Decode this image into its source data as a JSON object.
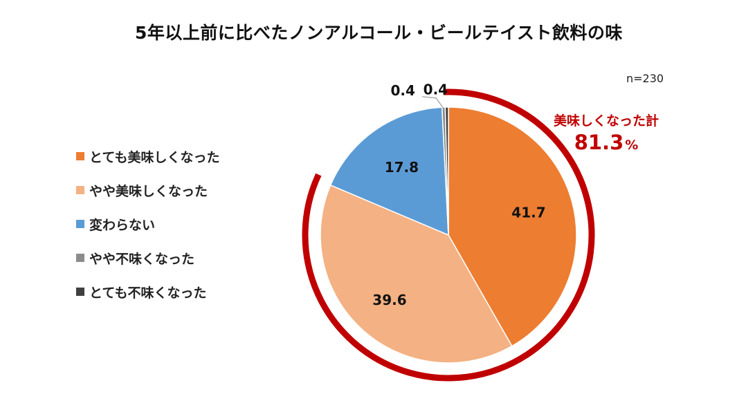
{
  "chart_data": {
    "type": "pie",
    "title": "5年以上前に比べたノンアルコール・ビールテイスト飲料の味",
    "sample": "n=230",
    "categories": [
      "とても美味しくなった",
      "やや美味しくなった",
      "変わらない",
      "やや不味くなった",
      "とても不味くなった"
    ],
    "values": [
      41.7,
      39.6,
      17.8,
      0.4,
      0.4
    ],
    "value_labels": [
      "41.7",
      "39.6",
      "17.8",
      "0.4",
      "0.4"
    ],
    "colors": [
      "#ed7d31",
      "#f4b183",
      "#5b9bd5",
      "#8c8c8c",
      "#404040"
    ],
    "legend_position": "left",
    "highlight": {
      "label": "美味しくなった計",
      "value": "81.3",
      "unit": "%",
      "color": "#c00000"
    }
  }
}
